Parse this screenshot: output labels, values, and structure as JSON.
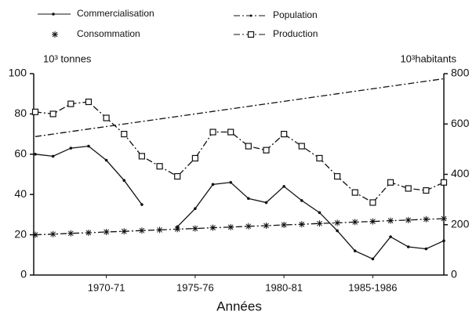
{
  "chart_data": {
    "type": "line",
    "y_label": "10³ tonnes",
    "y2_label": "10³habitants",
    "x_label": "Années",
    "categories": [
      null,
      null,
      null,
      null,
      "1970-71",
      null,
      null,
      null,
      null,
      "1975-76",
      null,
      null,
      null,
      null,
      "1980-81",
      null,
      null,
      null,
      null,
      "1985-1986",
      null,
      null,
      null,
      null
    ],
    "ylim": [
      0,
      100
    ],
    "yticks": [
      0,
      20,
      40,
      60,
      80,
      100
    ],
    "y2lim": [
      0,
      800
    ],
    "y2ticks": [
      0,
      200,
      400,
      600,
      800
    ],
    "color": "#111111",
    "series": [
      {
        "name": "Commercialisation",
        "marker": "dot",
        "dash": "solid",
        "values": [
          60,
          59,
          63,
          64,
          57,
          47,
          35,
          null,
          24,
          33,
          45,
          46,
          38,
          36,
          44,
          37,
          31,
          22,
          12,
          8,
          19,
          14,
          13,
          17
        ]
      },
      {
        "name": "Consommation",
        "marker": "star",
        "dash": "dashdot",
        "values": [
          20,
          20.3,
          20.7,
          21,
          21.4,
          21.7,
          22.1,
          22.4,
          22.8,
          23.1,
          23.5,
          23.8,
          24.2,
          24.5,
          24.9,
          25.2,
          25.6,
          25.9,
          26.3,
          26.6,
          27,
          27.3,
          27.7,
          28
        ]
      },
      {
        "name": "Population",
        "marker": "none",
        "dash": "dashdot",
        "axis": "y2",
        "values": [
          550,
          560,
          570,
          580,
          590,
          600,
          610,
          620,
          630,
          640,
          650,
          660,
          670,
          680,
          690,
          700,
          710,
          720,
          730,
          740,
          750,
          760,
          770,
          780
        ]
      },
      {
        "name": "Production",
        "marker": "square",
        "dash": "dashdot",
        "values": [
          81,
          80,
          85,
          86,
          78,
          70,
          59,
          54,
          49,
          58,
          71,
          71,
          64,
          62,
          70,
          64,
          58,
          49,
          41,
          36,
          46,
          43,
          42,
          46
        ]
      }
    ]
  }
}
